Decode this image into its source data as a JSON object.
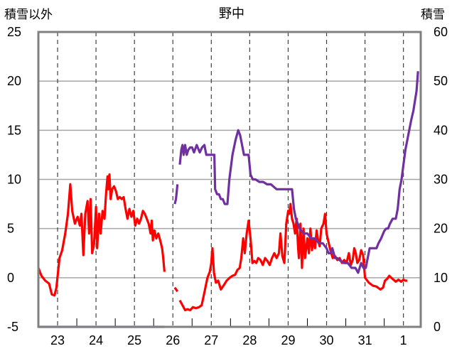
{
  "chart_data": {
    "type": "line",
    "title": "野中",
    "ylabel": "積雪以外",
    "ylabel_right": "積雪",
    "ylim": [
      -5,
      25
    ],
    "ylim_right": [
      0,
      60
    ],
    "yticks": [
      "25",
      "20",
      "15",
      "10",
      "5",
      "0",
      "-5"
    ],
    "yticks_right": [
      "60",
      "50",
      "40",
      "30",
      "20",
      "10",
      "0"
    ],
    "xlim": [
      22.5,
      32.45
    ],
    "x_categories": [
      "23",
      "24",
      "25",
      "26",
      "27",
      "28",
      "29",
      "30",
      "31",
      "1"
    ],
    "grid": true,
    "colors": {
      "other": "#ff0000",
      "snow": "#7030a0"
    },
    "series": [
      {
        "axis": "left",
        "segments": [
          [
            [
              22.5,
              1.0
            ],
            [
              22.58,
              0.2
            ],
            [
              22.68,
              -0.3
            ],
            [
              22.78,
              -0.6
            ],
            [
              22.85,
              -1.7
            ],
            [
              22.92,
              -1.8
            ],
            [
              22.97,
              -1.0
            ],
            [
              23.05,
              2.0
            ],
            [
              23.12,
              2.8
            ],
            [
              23.2,
              4.5
            ],
            [
              23.27,
              6.5
            ],
            [
              23.33,
              9.5
            ],
            [
              23.38,
              6.8
            ],
            [
              23.45,
              5.5
            ],
            [
              23.52,
              6.2
            ],
            [
              23.58,
              5.3
            ],
            [
              23.62,
              6.5
            ],
            [
              23.67,
              2.3
            ],
            [
              23.72,
              6.5
            ],
            [
              23.78,
              7.8
            ],
            [
              23.82,
              4.5
            ],
            [
              23.86,
              8.0
            ],
            [
              23.9,
              2.5
            ],
            [
              23.95,
              3.5
            ],
            [
              24.0,
              7.2
            ],
            [
              24.03,
              3.0
            ],
            [
              24.08,
              6.5
            ],
            [
              24.12,
              4.5
            ],
            [
              24.17,
              6.8
            ],
            [
              24.22,
              6.0
            ],
            [
              24.26,
              8.5
            ],
            [
              24.3,
              10.3
            ],
            [
              24.32,
              9.0
            ],
            [
              24.35,
              10.5
            ],
            [
              24.38,
              8.0
            ],
            [
              24.42,
              9.0
            ],
            [
              24.47,
              9.3
            ],
            [
              24.52,
              8.8
            ],
            [
              24.57,
              8.0
            ],
            [
              24.62,
              8.2
            ],
            [
              24.67,
              8.0
            ],
            [
              24.72,
              8.2
            ],
            [
              24.77,
              7.0
            ],
            [
              24.82,
              6.0
            ],
            [
              24.87,
              7.0
            ],
            [
              24.92,
              6.2
            ],
            [
              24.97,
              6.8
            ],
            [
              25.02,
              5.3
            ],
            [
              25.07,
              6.0
            ],
            [
              25.12,
              5.5
            ],
            [
              25.17,
              6.0
            ],
            [
              25.22,
              6.8
            ],
            [
              25.27,
              6.5
            ],
            [
              25.32,
              6.0
            ],
            [
              25.37,
              5.5
            ],
            [
              25.42,
              4.5
            ],
            [
              25.45,
              5.8
            ],
            [
              25.48,
              3.8
            ],
            [
              25.52,
              4.8
            ],
            [
              25.57,
              4.0
            ],
            [
              25.62,
              4.5
            ],
            [
              25.67,
              3.8
            ],
            [
              25.72,
              3.0
            ],
            [
              25.75,
              2.0
            ],
            [
              25.78,
              0.6
            ]
          ],
          [
            [
              26.05,
              -1.0
            ],
            [
              26.12,
              -1.4
            ]
          ],
          [
            [
              26.18,
              -2.3
            ],
            [
              26.25,
              -2.8
            ],
            [
              26.32,
              -3.3
            ],
            [
              26.38,
              -3.2
            ],
            [
              26.45,
              -3.3
            ],
            [
              26.52,
              -3.0
            ],
            [
              26.6,
              -3.1
            ],
            [
              26.68,
              -3.0
            ],
            [
              26.75,
              -2.8
            ],
            [
              26.82,
              -1.5
            ],
            [
              26.9,
              0.0
            ],
            [
              26.96,
              0.6
            ],
            [
              27.0,
              1.5
            ],
            [
              27.03,
              3.0
            ],
            [
              27.07,
              0.5
            ],
            [
              27.12,
              -0.5
            ],
            [
              27.18,
              -0.3
            ],
            [
              27.25,
              -1.2
            ],
            [
              27.32,
              -0.8
            ],
            [
              27.4,
              -0.3
            ],
            [
              27.48,
              0.0
            ],
            [
              27.55,
              0.2
            ],
            [
              27.62,
              0.3
            ],
            [
              27.68,
              0.8
            ],
            [
              27.74,
              1.0
            ],
            [
              27.78,
              2.0
            ],
            [
              27.83,
              4.0
            ],
            [
              27.87,
              2.5
            ],
            [
              27.92,
              4.5
            ],
            [
              27.97,
              5.8
            ],
            [
              28.02,
              4.0
            ],
            [
              28.07,
              1.5
            ],
            [
              28.12,
              1.7
            ],
            [
              28.17,
              1.5
            ],
            [
              28.22,
              2.0
            ],
            [
              28.28,
              1.8
            ],
            [
              28.34,
              1.3
            ],
            [
              28.4,
              2.0
            ],
            [
              28.46,
              1.7
            ],
            [
              28.52,
              1.3
            ],
            [
              28.58,
              2.0
            ],
            [
              28.64,
              2.5
            ],
            [
              28.7,
              2.0
            ],
            [
              28.76,
              2.5
            ],
            [
              28.8,
              4.5
            ],
            [
              28.85,
              2.2
            ],
            [
              28.9,
              1.5
            ],
            [
              28.95,
              5.5
            ],
            [
              29.0,
              6.8
            ],
            [
              29.03,
              6.5
            ],
            [
              29.06,
              7.5
            ],
            [
              29.1,
              6.0
            ],
            [
              29.14,
              5.5
            ],
            [
              29.18,
              4.5
            ],
            [
              29.22,
              6.0
            ],
            [
              29.26,
              3.0
            ],
            [
              29.28,
              2.0
            ],
            [
              29.32,
              5.5
            ],
            [
              29.36,
              1.0
            ],
            [
              29.4,
              5.0
            ],
            [
              29.44,
              2.0
            ],
            [
              29.5,
              4.0
            ],
            [
              29.54,
              2.5
            ],
            [
              29.58,
              5.0
            ],
            [
              29.62,
              2.8
            ],
            [
              29.66,
              4.0
            ],
            [
              29.7,
              3.0
            ],
            [
              29.74,
              4.8
            ],
            [
              29.78,
              3.8
            ],
            [
              29.82,
              3.2
            ],
            [
              29.86,
              5.0
            ],
            [
              29.92,
              5.5
            ],
            [
              29.96,
              6.5
            ],
            [
              30.0,
              4.5
            ],
            [
              30.04,
              3.8
            ],
            [
              30.1,
              2.8
            ],
            [
              30.16,
              2.0
            ],
            [
              30.22,
              2.2
            ],
            [
              30.28,
              1.8
            ],
            [
              30.34,
              2.0
            ],
            [
              30.4,
              1.5
            ],
            [
              30.46,
              1.8
            ],
            [
              30.52,
              1.5
            ],
            [
              30.58,
              2.5
            ],
            [
              30.63,
              1.3
            ],
            [
              30.68,
              1.8
            ],
            [
              30.72,
              3.0
            ],
            [
              30.76,
              2.5
            ],
            [
              30.8,
              1.5
            ],
            [
              30.85,
              1.8
            ],
            [
              30.9,
              2.8
            ],
            [
              30.95,
              2.3
            ],
            [
              31.0,
              0.0
            ],
            [
              31.1,
              -0.5
            ],
            [
              31.2,
              -0.8
            ],
            [
              31.3,
              -0.9
            ],
            [
              31.4,
              -1.2
            ],
            [
              31.47,
              -1.0
            ],
            [
              31.52,
              -0.3
            ],
            [
              31.58,
              -0.1
            ],
            [
              31.63,
              0.2
            ],
            [
              31.68,
              0.0
            ],
            [
              31.74,
              -0.2
            ],
            [
              31.8,
              -0.4
            ],
            [
              31.87,
              -0.2
            ],
            [
              31.94,
              -0.4
            ],
            [
              32.0,
              -0.2
            ],
            [
              32.05,
              -0.3
            ],
            [
              32.1,
              -0.3
            ]
          ]
        ]
      },
      {
        "axis": "right",
        "segments": [
          [
            [
              22.5,
              0
            ],
            [
              25.78,
              0
            ]
          ],
          [
            [
              26.05,
              25
            ],
            [
              26.08,
              26
            ],
            [
              26.12,
              29
            ]
          ],
          [
            [
              26.18,
              33
            ],
            [
              26.22,
              36
            ],
            [
              26.25,
              37
            ],
            [
              26.28,
              35
            ],
            [
              26.32,
              37
            ],
            [
              26.36,
              35
            ],
            [
              26.4,
              36
            ],
            [
              26.45,
              36.5
            ],
            [
              26.5,
              36.5
            ],
            [
              26.55,
              35.5
            ],
            [
              26.62,
              37
            ],
            [
              26.7,
              35.5
            ],
            [
              26.76,
              36.5
            ],
            [
              26.82,
              37
            ],
            [
              26.87,
              35
            ],
            [
              26.92,
              35
            ],
            [
              27.0,
              35
            ],
            [
              27.08,
              35
            ],
            [
              27.1,
              28
            ],
            [
              27.15,
              27
            ],
            [
              27.2,
              27
            ],
            [
              27.25,
              26
            ],
            [
              27.3,
              26
            ],
            [
              27.35,
              25
            ],
            [
              27.42,
              25
            ],
            [
              27.47,
              30
            ],
            [
              27.55,
              35
            ],
            [
              27.63,
              38
            ],
            [
              27.7,
              40
            ],
            [
              27.75,
              39
            ],
            [
              27.8,
              37
            ],
            [
              27.85,
              35
            ],
            [
              27.9,
              35
            ],
            [
              27.97,
              35
            ],
            [
              28.02,
              31
            ],
            [
              28.08,
              30
            ],
            [
              28.15,
              30
            ],
            [
              28.25,
              29.5
            ],
            [
              28.35,
              29.5
            ],
            [
              28.45,
              29
            ],
            [
              28.55,
              29
            ],
            [
              28.7,
              28
            ],
            [
              28.85,
              28
            ],
            [
              29.0,
              28
            ],
            [
              29.1,
              28
            ],
            [
              29.15,
              24
            ],
            [
              29.2,
              22
            ],
            [
              29.3,
              20
            ],
            [
              29.4,
              19
            ],
            [
              29.5,
              19
            ],
            [
              29.6,
              18
            ],
            [
              29.7,
              18
            ],
            [
              29.8,
              17
            ],
            [
              29.9,
              17
            ],
            [
              30.0,
              16
            ],
            [
              30.05,
              15
            ],
            [
              30.1,
              15
            ],
            [
              30.15,
              16
            ],
            [
              30.22,
              14
            ],
            [
              30.28,
              14
            ],
            [
              30.35,
              13.5
            ],
            [
              30.45,
              13
            ],
            [
              30.55,
              13
            ],
            [
              30.65,
              12
            ],
            [
              30.75,
              12
            ],
            [
              30.82,
              11
            ],
            [
              30.9,
              13
            ],
            [
              30.96,
              12
            ],
            [
              31.02,
              12
            ],
            [
              31.12,
              16
            ],
            [
              31.22,
              16
            ],
            [
              31.3,
              16
            ],
            [
              31.35,
              17
            ],
            [
              31.42,
              18
            ],
            [
              31.5,
              19.5
            ],
            [
              31.55,
              20
            ],
            [
              31.6,
              20
            ],
            [
              31.65,
              21
            ],
            [
              31.72,
              22
            ],
            [
              31.8,
              22
            ],
            [
              31.85,
              24
            ],
            [
              31.9,
              28
            ],
            [
              31.95,
              30
            ],
            [
              32.0,
              33
            ],
            [
              32.05,
              36
            ],
            [
              32.1,
              38
            ],
            [
              32.15,
              40
            ],
            [
              32.2,
              42
            ],
            [
              32.26,
              44
            ],
            [
              32.3,
              46
            ],
            [
              32.34,
              48
            ],
            [
              32.38,
              52
            ]
          ]
        ]
      }
    ]
  }
}
